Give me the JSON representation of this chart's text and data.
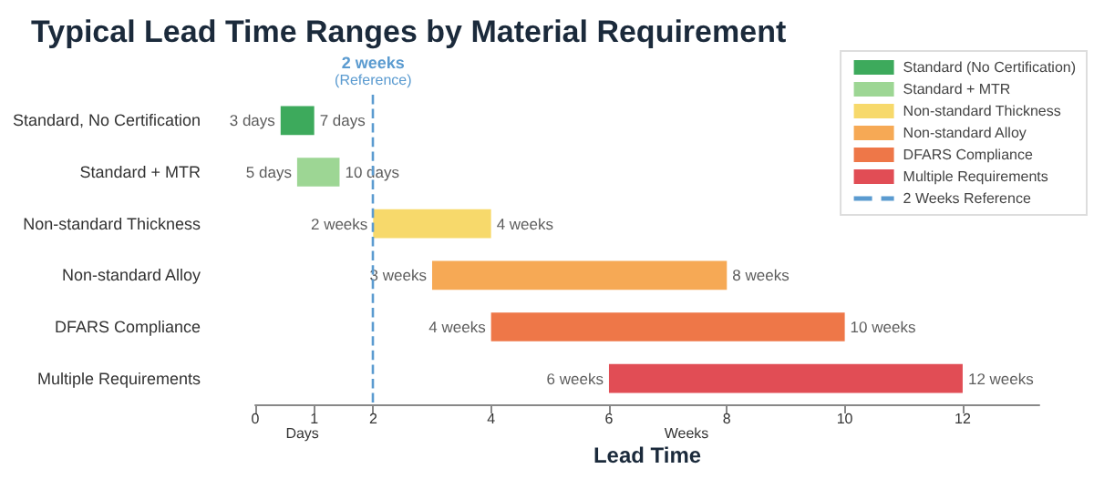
{
  "chart_data": {
    "type": "bar",
    "orientation": "horizontal",
    "title": "Typical Lead Time Ranges by Material Requirement",
    "xlabel": "Lead Time",
    "categories": [
      "Standard, No Certification",
      "Standard + MTR",
      "Non-standard Thickness",
      "Non-standard Alloy",
      "DFARS Compliance",
      "Multiple Requirements"
    ],
    "series": [
      {
        "name": "Standard (No Certification)",
        "color": "#3daa5c",
        "base": [
          0.43,
          null,
          null,
          null,
          null,
          null
        ],
        "values": [
          0.57,
          null,
          null,
          null,
          null,
          null
        ]
      },
      {
        "name": "Standard + MTR",
        "color": "#9dd694",
        "base": [
          null,
          0.71,
          null,
          null,
          null,
          null
        ],
        "values": [
          null,
          0.72,
          null,
          null,
          null,
          null
        ]
      },
      {
        "name": "Non-standard Thickness",
        "color": "#f7d96b",
        "base": [
          null,
          null,
          2,
          null,
          null,
          null
        ],
        "values": [
          null,
          null,
          2,
          null,
          null,
          null
        ]
      },
      {
        "name": "Non-standard Alloy",
        "color": "#f6a955",
        "base": [
          null,
          null,
          null,
          3,
          null,
          null
        ],
        "values": [
          null,
          null,
          null,
          5,
          null,
          null
        ]
      },
      {
        "name": "DFARS Compliance",
        "color": "#ee7748",
        "base": [
          null,
          null,
          null,
          null,
          4,
          null
        ],
        "values": [
          null,
          null,
          null,
          null,
          6,
          null
        ]
      },
      {
        "name": "Multiple Requirements",
        "color": "#e14d55",
        "base": [
          null,
          null,
          null,
          null,
          null,
          6
        ],
        "values": [
          null,
          null,
          null,
          null,
          null,
          6
        ]
      }
    ],
    "xlim": [
      0,
      13.3
    ],
    "xticks": [
      0,
      1,
      2,
      4,
      6,
      8,
      10,
      12
    ],
    "ref_lines": [
      {
        "axis": "x",
        "value": 2,
        "label": "2 weeks\n(Reference)",
        "color": "#5b9bd0",
        "line_style": "dashed"
      }
    ],
    "legend": "top right",
    "annotations": [
      "2 Weeks Reference",
      "Days",
      "Weeks",
      {
        "text": "3 days",
        "x": 0.43,
        "y": "Standard, No Certification"
      },
      {
        "text": "7 days",
        "x": 1,
        "y": "Standard, No Certification"
      },
      {
        "text": "5 days",
        "x": 0.71,
        "y": "Standard + MTR"
      },
      {
        "text": "10 days",
        "x": 1.43,
        "y": "Standard + MTR"
      },
      {
        "text": "2 weeks",
        "x": 2,
        "y": "Non-standard Thickness"
      },
      {
        "text": "4 weeks",
        "x": 4,
        "y": "Non-standard Thickness"
      },
      {
        "text": "3 weeks",
        "x": 3,
        "y": "Non-standard Alloy"
      },
      {
        "text": "8 weeks",
        "x": 8,
        "y": "Non-standard Alloy"
      },
      {
        "text": "4 weeks",
        "x": 4,
        "y": "DFARS Compliance"
      },
      {
        "text": "10 weeks",
        "x": 10,
        "y": "DFARS Compliance"
      },
      {
        "text": "6 weeks",
        "x": 6,
        "y": "Multiple Requirements"
      },
      {
        "text": "12 weeks",
        "x": 12,
        "y": "Multiple Requirements"
      }
    ]
  }
}
